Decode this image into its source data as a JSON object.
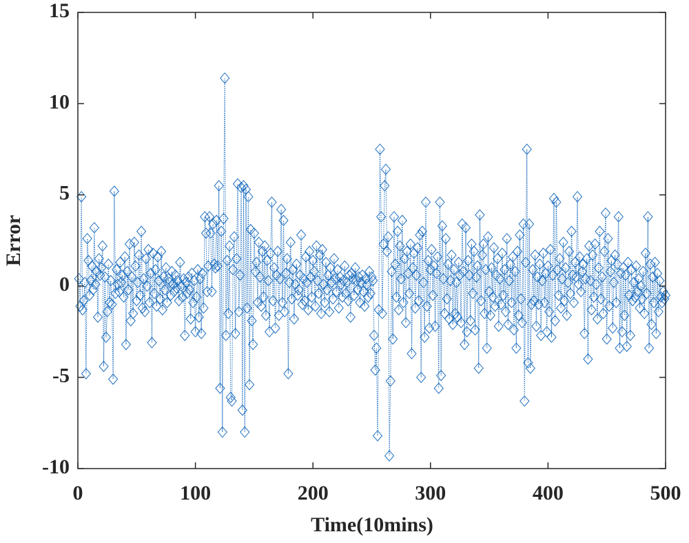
{
  "chart_data": {
    "type": "line",
    "xlabel": "Time(10mins)",
    "ylabel": "Error",
    "xlim": [
      0,
      500
    ],
    "ylim": [
      -10,
      15
    ],
    "xticks": [
      0,
      100,
      200,
      300,
      400,
      500
    ],
    "yticks": [
      -10,
      -5,
      0,
      5,
      10,
      15
    ],
    "series": [
      {
        "color": "#1f6fbf",
        "x": [
          1,
          2,
          3,
          4,
          5,
          6,
          7,
          8,
          9,
          10,
          11,
          12,
          13,
          14,
          15,
          16,
          17,
          18,
          19,
          20,
          21,
          22,
          23,
          24,
          25,
          26,
          27,
          28,
          29,
          30,
          31,
          32,
          33,
          34,
          35,
          36,
          37,
          38,
          39,
          40,
          41,
          42,
          43,
          44,
          45,
          46,
          47,
          48,
          49,
          50,
          51,
          52,
          53,
          54,
          55,
          56,
          57,
          58,
          59,
          60,
          61,
          62,
          63,
          64,
          65,
          66,
          67,
          68,
          69,
          70,
          71,
          72,
          73,
          74,
          75,
          76,
          77,
          78,
          79,
          80,
          81,
          82,
          83,
          84,
          85,
          86,
          87,
          88,
          89,
          90,
          91,
          92,
          93,
          94,
          95,
          96,
          97,
          98,
          99,
          100,
          101,
          102,
          103,
          104,
          105,
          106,
          107,
          108,
          109,
          110,
          111,
          112,
          113,
          114,
          115,
          116,
          117,
          118,
          119,
          120,
          121,
          122,
          123,
          124,
          125,
          126,
          127,
          128,
          129,
          130,
          131,
          132,
          133,
          134,
          135,
          136,
          137,
          138,
          139,
          140,
          141,
          142,
          143,
          144,
          145,
          146,
          147,
          148,
          149,
          150,
          151,
          152,
          153,
          154,
          155,
          156,
          157,
          158,
          159,
          160,
          161,
          162,
          163,
          164,
          165,
          166,
          167,
          168,
          169,
          170,
          171,
          172,
          173,
          174,
          175,
          176,
          177,
          178,
          179,
          180,
          181,
          182,
          183,
          184,
          185,
          186,
          187,
          188,
          189,
          190,
          191,
          192,
          193,
          194,
          195,
          196,
          197,
          198,
          199,
          200,
          201,
          202,
          203,
          204,
          205,
          206,
          207,
          208,
          209,
          210,
          211,
          212,
          213,
          214,
          215,
          216,
          217,
          218,
          219,
          220,
          221,
          222,
          223,
          224,
          225,
          226,
          227,
          228,
          229,
          230,
          231,
          232,
          233,
          234,
          235,
          236,
          237,
          238,
          239,
          240,
          241,
          242,
          243,
          244,
          245,
          246,
          247,
          248,
          249,
          250,
          251,
          252,
          253,
          254,
          255,
          256,
          257,
          258,
          259,
          260,
          261,
          262,
          263,
          264,
          265,
          266,
          267,
          268,
          269,
          270,
          271,
          272,
          273,
          274,
          275,
          276,
          277,
          278,
          279,
          280,
          281,
          282,
          283,
          284,
          285,
          286,
          287,
          288,
          289,
          290,
          291,
          292,
          293,
          294,
          295,
          296,
          297,
          298,
          299,
          300,
          301,
          302,
          303,
          304,
          305,
          306,
          307,
          308,
          309,
          310,
          311,
          312,
          313,
          314,
          315,
          316,
          317,
          318,
          319,
          320,
          321,
          322,
          323,
          324,
          325,
          326,
          327,
          328,
          329,
          330,
          331,
          332,
          333,
          334,
          335,
          336,
          337,
          338,
          339,
          340,
          341,
          342,
          343,
          344,
          345,
          346,
          347,
          348,
          349,
          350,
          351,
          352,
          353,
          354,
          355,
          356,
          357,
          358,
          359,
          360,
          361,
          362,
          363,
          364,
          365,
          366,
          367,
          368,
          369,
          370,
          371,
          372,
          373,
          374,
          375,
          376,
          377,
          378,
          379,
          380,
          381,
          382,
          383,
          384,
          385,
          386,
          387,
          388,
          389,
          390,
          391,
          392,
          393,
          394,
          395,
          396,
          397,
          398,
          399,
          400,
          401,
          402,
          403,
          404,
          405,
          406,
          407,
          408,
          409,
          410,
          411,
          412,
          413,
          414,
          415,
          416,
          417,
          418,
          419,
          420,
          421,
          422,
          423,
          424,
          425,
          426,
          427,
          428,
          429,
          430,
          431,
          432,
          433,
          434,
          435,
          436,
          437,
          438,
          439,
          440,
          441,
          442,
          443,
          444,
          445,
          446,
          447,
          448,
          449,
          450,
          451,
          452,
          453,
          454,
          455,
          456,
          457,
          458,
          459,
          460,
          461,
          462,
          463,
          464,
          465,
          466,
          467,
          468,
          469,
          470,
          471,
          472,
          473,
          474,
          475,
          476,
          477,
          478,
          479,
          480,
          481,
          482,
          483,
          484,
          485,
          486,
          487,
          488,
          489,
          490,
          491,
          492,
          493,
          494,
          495,
          496,
          497,
          498,
          499,
          500
        ],
        "values": [
          0.4,
          -1.1,
          4.9,
          -1.3,
          -0.8,
          0.2,
          -4.8,
          2.6,
          1.4,
          -0.5,
          0.3,
          1.1,
          -0.2,
          3.2,
          0.1,
          0.8,
          -1.7,
          1.5,
          0.6,
          1.0,
          2.2,
          -4.4,
          0.5,
          -2.8,
          -1.4,
          1.2,
          -0.9,
          0.3,
          -1.0,
          -5.1,
          5.2,
          -0.4,
          0.9,
          0.1,
          -0.3,
          1.3,
          0.2,
          0.6,
          -0.6,
          1.6,
          -3.2,
          0.8,
          -0.2,
          2.3,
          -1.9,
          0.5,
          -1.5,
          2.4,
          1.1,
          -0.8,
          0.2,
          1.7,
          -0.5,
          3.0,
          -1.2,
          0.4,
          -1.4,
          1.5,
          0.0,
          2.0,
          -0.9,
          0.7,
          -3.1,
          1.8,
          -0.4,
          0.9,
          -1.1,
          1.6,
          0.3,
          -0.7,
          1.9,
          -1.3,
          0.5,
          -0.2,
          1.0,
          -0.9,
          0.4,
          0.2,
          -0.5,
          0.8,
          0.1,
          -0.3,
          0.6,
          -0.1,
          0.3,
          -0.8,
          1.3,
          0.0,
          -0.6,
          0.4,
          -2.7,
          0.2,
          -0.4,
          0.5,
          -0.2,
          -1.8,
          0.7,
          -0.9,
          0.3,
          -2.5,
          -0.6,
          0.9,
          -1.7,
          0.4,
          -2.6,
          0.7,
          -1.2,
          3.8,
          2.9,
          -0.3,
          1.1,
          3.8,
          2.9,
          -0.3,
          3.4,
          1.2,
          1.0,
          3.6,
          1.1,
          5.5,
          -5.6,
          3.0,
          -8.0,
          3.7,
          11.4,
          -2.7,
          1.4,
          -1.5,
          2.2,
          -6.1,
          -6.3,
          0.9,
          2.7,
          -2.6,
          1.5,
          5.6,
          -1.4,
          0.6,
          5.4,
          -6.8,
          5.5,
          -8.0,
          5.3,
          -1.2,
          4.9,
          -5.4,
          3.1,
          -1.9,
          -3.2,
          2.9,
          0.8,
          1.3,
          -0.9,
          2.4,
          0.5,
          -1.1,
          1.9,
          -0.6,
          2.2,
          -1.6,
          1.4,
          0.3,
          -2.5,
          1.8,
          4.6,
          -0.8,
          1.0,
          -2.3,
          0.6,
          1.9,
          -1.6,
          0.4,
          4.2,
          -0.9,
          3.6,
          -1.4,
          0.7,
          1.5,
          -4.8,
          0.2,
          2.4,
          -0.7,
          0.9,
          -1.8,
          0.1,
          1.2,
          -0.5,
          -0.2,
          0.6,
          2.8,
          -1.0,
          0.4,
          -0.8,
          1.6,
          0.2,
          -1.3,
          1.9,
          0.5,
          -0.6,
          1.4,
          0.8,
          -1.1,
          2.2,
          0.3,
          -0.4,
          1.7,
          -1.5,
          2.0,
          0.1,
          -0.9,
          1.3,
          -0.2,
          0.6,
          -1.4,
          1.0,
          0.2,
          -0.7,
          1.5,
          0.4,
          -0.3,
          0.9,
          -1.2,
          0.5,
          0.1,
          -0.6,
          0.3,
          1.1,
          -0.4,
          0.2,
          -0.8,
          0.6,
          -1.7,
          0.7,
          0.4,
          -0.5,
          1.0,
          0.3,
          -0.2,
          0.5,
          -0.9,
          0.2,
          0.6,
          -0.3,
          -1.1,
          0.4,
          0.1,
          -0.6,
          0.8,
          -0.4,
          0.5,
          0.3,
          -2.7,
          -4.6,
          -3.4,
          -8.2,
          -1.3,
          7.5,
          3.8,
          -1.5,
          2.3,
          5.5,
          6.4,
          1.9,
          2.7,
          -9.3,
          -5.2,
          0.8,
          -2.9,
          3.8,
          1.2,
          -0.6,
          3.0,
          -1.3,
          2.2,
          0.4,
          3.6,
          -0.9,
          1.5,
          -2.0,
          1.9,
          0.7,
          -0.4,
          2.3,
          -3.7,
          1.0,
          1.8,
          -1.2,
          0.6,
          2.1,
          -0.8,
          2.8,
          -5.0,
          3.0,
          0.2,
          -2.8,
          4.6,
          -1.1,
          1.4,
          -2.3,
          0.9,
          2.0,
          -0.5,
          1.1,
          -2.2,
          0.7,
          1.6,
          -5.6,
          4.6,
          -4.9,
          3.3,
          0.4,
          -1.5,
          2.6,
          -0.7,
          1.2,
          -1.8,
          0.3,
          1.7,
          -2.1,
          0.9,
          -1.5,
          0.2,
          -1.7,
          1.3,
          0.6,
          -2.0,
          3.4,
          0.8,
          -3.2,
          3.2,
          -2.5,
          1.4,
          0.6,
          -1.9,
          2.3,
          -0.4,
          1.9,
          -2.4,
          0.5,
          1.1,
          -4.5,
          3.9,
          -0.8,
          1.7,
          2.3,
          -1.5,
          0.9,
          -3.4,
          2.7,
          -0.3,
          -1.6,
          1.0,
          -0.6,
          2.1,
          -1.1,
          0.6,
          1.5,
          -2.2,
          0.4,
          -1.0,
          1.8,
          -0.5,
          0.9,
          -1.4,
          2.6,
          -2.1,
          0.3,
          1.2,
          -0.9,
          1.6,
          -2.4,
          0.8,
          -3.4,
          1.9,
          -1.6,
          2.8,
          -0.7,
          -2.0,
          3.4,
          -6.3,
          1.3,
          7.5,
          -4.2,
          3.4,
          -4.5,
          -1.0,
          0.9,
          -0.8,
          1.7,
          -2.2,
          0.5,
          -1.0,
          1.2,
          -2.7,
          0.3,
          1.8,
          -0.9,
          0.7,
          -2.5,
          1.1,
          -1.4,
          2.0,
          -2.8,
          0.6,
          4.8,
          -1.9,
          4.6,
          0.9,
          -0.5,
          1.5,
          -1.2,
          0.4,
          2.4,
          -0.8,
          1.0,
          -1.6,
          0.2,
          1.9,
          -0.4,
          3.0,
          0.6,
          -0.9,
          1.3,
          0.5,
          4.9,
          0.1,
          1.6,
          -0.3,
          0.8,
          1.2,
          -2.6,
          0.4,
          1.5,
          -4.0,
          2.2,
          0.3,
          -1.3,
          1.7,
          -0.6,
          2.3,
          0.1,
          -1.8,
          1.0,
          3.0,
          -0.7,
          0.5,
          -1.5,
          1.9,
          4.0,
          -2.9,
          2.6,
          -1.1,
          0.8,
          1.4,
          -2.3,
          0.2,
          1.7,
          -0.9,
          1.2,
          3.8,
          -3.4,
          0.7,
          -2.5,
          1.0,
          -1.6,
          0.6,
          -3.3,
          1.3,
          -0.5,
          -2.7,
          0.9,
          -0.8,
          0.2,
          -0.6,
          1.1,
          -0.3,
          0.4,
          -1.2,
          0.0,
          -0.7,
          0.8,
          -1.5,
          1.8,
          -0.4,
          3.8,
          -3.4,
          1.2,
          -2.1,
          0.5,
          -0.9,
          1.3,
          -2.6,
          0.7,
          -1.4,
          0.3,
          -0.6,
          -0.9,
          -0.3,
          -0.7,
          -0.5
        ]
      }
    ]
  }
}
